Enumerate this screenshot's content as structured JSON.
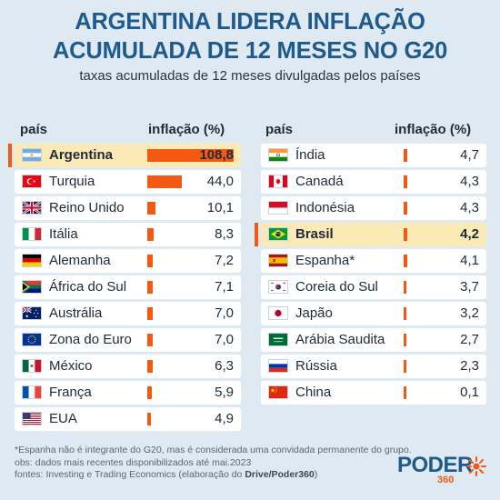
{
  "title_line1": "ARGENTINA LIDERA INFLAÇÃO",
  "title_line2": "ACUMULADA DE 12 MESES NO G20",
  "subtitle": "taxas acumuladas de 12 meses divulgadas pelos países",
  "column_headers": {
    "country": "país",
    "inflation": "inflação (%)"
  },
  "colors": {
    "accent": "#f25a14",
    "title": "#1e5a8c",
    "highlight": "#fbeab5",
    "background": "#dfe9f2"
  },
  "chart_data": {
    "type": "bar",
    "title": "ARGENTINA LIDERA INFLAÇÃO ACUMULADA DE 12 MESES NO G20",
    "subtitle": "taxas acumuladas de 12 meses divulgadas pelos países",
    "value_label": "inflação (%)",
    "category_label": "país",
    "categories": [
      "Argentina",
      "Turquia",
      "Reino Unido",
      "Itália",
      "Alemanha",
      "África do Sul",
      "Austrália",
      "Zona do Euro",
      "México",
      "França",
      "EUA",
      "Índia",
      "Canadá",
      "Indonésia",
      "Brasil",
      "Espanha*",
      "Coreia do Sul",
      "Japão",
      "Arábia Saudita",
      "Rússia",
      "China"
    ],
    "values_display": [
      "108,8",
      "44,0",
      "10,1",
      "8,3",
      "7,2",
      "7,1",
      "7,0",
      "7,0",
      "6,3",
      "5,9",
      "4,9",
      "4,7",
      "4,3",
      "4,3",
      "4,2",
      "4,1",
      "3,7",
      "3,2",
      "2,7",
      "2,3",
      "0,1"
    ],
    "values": [
      108.8,
      44.0,
      10.1,
      8.3,
      7.2,
      7.1,
      7.0,
      7.0,
      6.3,
      5.9,
      4.9,
      4.7,
      4.3,
      4.3,
      4.2,
      4.1,
      3.7,
      3.2,
      2.7,
      2.3,
      0.1
    ],
    "highlighted": [
      "Argentina",
      "Brasil"
    ],
    "flags": [
      "ar",
      "tr",
      "uk",
      "it",
      "de",
      "za",
      "au",
      "eu",
      "mx",
      "fr",
      "us",
      "in",
      "ca",
      "id",
      "br",
      "es",
      "kr",
      "jp",
      "sa",
      "ru",
      "cn"
    ],
    "columns": [
      11,
      10
    ]
  },
  "footnotes": {
    "line1": "*Espanha não é integrante do G20, mas é considerada uma convidada permanente do grupo.",
    "line2": "obs: dados mais recentes disponibilizados até mai.2023",
    "line3_prefix": "fontes: Investing e Trading Economics (elaboração do ",
    "line3_bold": "Drive/Poder360",
    "line3_suffix": ")"
  },
  "logo": {
    "word": "PODER",
    "number": "360"
  }
}
